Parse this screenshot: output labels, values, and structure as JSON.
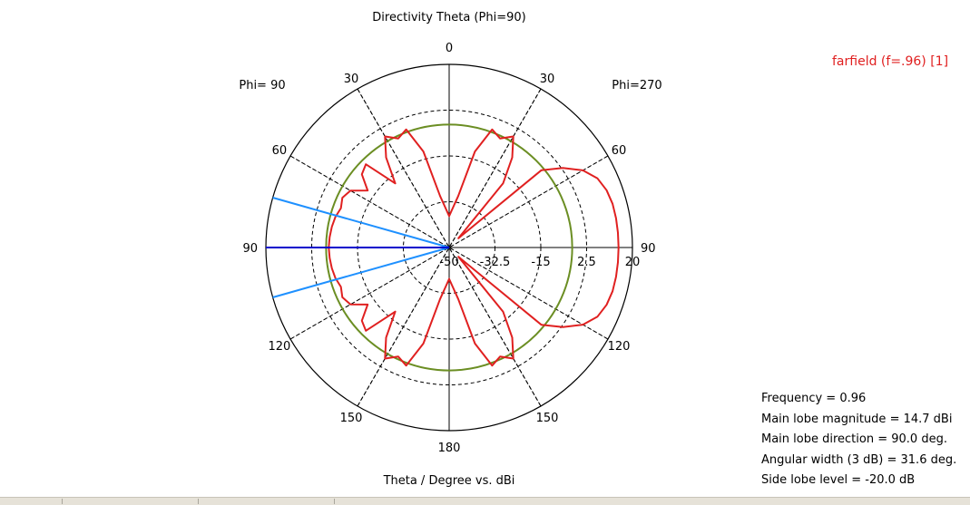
{
  "chart_data": {
    "type": "polar",
    "title": "Directivity Theta (Phi=90)",
    "xlabel": "Theta / Degree vs. dBi",
    "left_half_label": "Phi= 90",
    "right_half_label": "Phi=270",
    "angle_labels": [
      "0",
      "30",
      "60",
      "90",
      "120",
      "150",
      "180",
      "150",
      "120",
      "90",
      "60",
      "30"
    ],
    "radial_ticks": [
      "-50",
      "-32.5",
      "-15",
      "2.5",
      "20"
    ],
    "rlim": [
      -50,
      20
    ],
    "grid": true,
    "legend": {
      "entries": [
        "farfield (f=.96) [1]"
      ],
      "placement": "top-right"
    },
    "series": [
      {
        "name": "farfield (f=.96) [1]",
        "color": "#e02020",
        "theta_deg": [
          -180,
          -175,
          -170,
          -165,
          -160,
          -155,
          -150,
          -145,
          -140,
          -135,
          -130,
          -125,
          -120,
          -115,
          -110,
          -105,
          -100,
          -95,
          -90,
          -85,
          -80,
          -75,
          -70,
          -65,
          -60,
          -55,
          -50,
          -45,
          -40,
          -35,
          -30,
          -25,
          -20,
          -15,
          -10,
          -5,
          0,
          5,
          10,
          15,
          20,
          25,
          30,
          35,
          40,
          45,
          50,
          55,
          60,
          65,
          70,
          75,
          80,
          85,
          90,
          95,
          100,
          105,
          110,
          115,
          120,
          125,
          130,
          135,
          140,
          145,
          150,
          155,
          160,
          165,
          170,
          175
        ],
        "dbi": [
          -38,
          -35,
          -30,
          -12,
          -2,
          -4,
          -1,
          -8,
          -18,
          -45,
          -4,
          3,
          9,
          12.5,
          14,
          14.6,
          14.7,
          14.7,
          14.7,
          14.7,
          14.7,
          14.6,
          14,
          12.5,
          9,
          3,
          -4,
          -45,
          -18,
          -8,
          -1,
          -4,
          -2,
          -12,
          -30,
          -35,
          -38,
          -35,
          -30,
          -12,
          -2,
          -4,
          -1,
          -8,
          -18,
          -5,
          -6.5,
          -12,
          -6.5,
          -5,
          -6,
          -5,
          -4.5,
          -4.2,
          -4,
          -4.2,
          -4.5,
          -5,
          -6,
          -5,
          -6.5,
          -12,
          -6.5,
          -5,
          -18,
          -8,
          -1,
          -4,
          -2,
          -12,
          -30,
          -35
        ]
      }
    ],
    "reference_circle": {
      "dbi": -3,
      "color": "#6b8e23"
    },
    "main_lobe_direction_deg": 90,
    "beamwidth_edges_deg": [
      74.2,
      105.8
    ],
    "main_lobe_color": "#0000cc",
    "beamwidth_color": "#1e90ff"
  },
  "info": {
    "lines": [
      "Frequency = 0.96",
      "Main lobe magnitude =  14.7 dBi",
      "Main lobe direction =   90.0 deg.",
      "Angular width (3 dB) =   31.6 deg.",
      "Side lobe level = -20.0 dB"
    ]
  }
}
